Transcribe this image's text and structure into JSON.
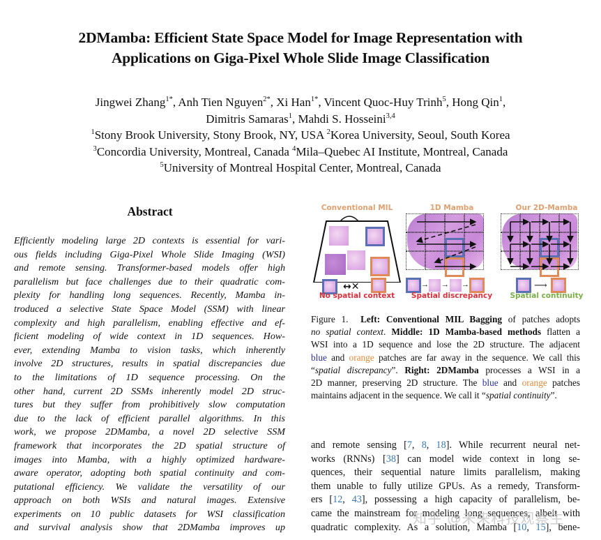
{
  "paper": {
    "title_lines": [
      "2DMamba: Efficient State Space Model for Image Representation with",
      "Applications on Giga-Pixel Whole Slide Image Classification"
    ],
    "authors": [
      {
        "name": "Jingwei Zhang",
        "sup": "1",
        "mark": "*"
      },
      {
        "name": "Anh Tien Nguyen",
        "sup": "2",
        "mark": "*"
      },
      {
        "name": "Xi Han",
        "sup": "1",
        "mark": "*"
      },
      {
        "name": "Vincent Quoc-Huy Trinh",
        "sup": "5"
      },
      {
        "name": "Hong Qin",
        "sup": "1"
      },
      {
        "name": "Dimitris Samaras",
        "sup": "1"
      },
      {
        "name": "Mahdi S. Hosseini",
        "sup": "3,4"
      }
    ],
    "affiliations": [
      {
        "sup": "1",
        "text": "Stony Brook University, Stony Brook, NY, USA"
      },
      {
        "sup": "2",
        "text": "Korea University, Seoul, South Korea"
      },
      {
        "sup": "3",
        "text": "Concordia University, Montreal, Canada"
      },
      {
        "sup": "4",
        "text": "Mila–Quebec AI Institute, Montreal, Canada"
      },
      {
        "sup": "5",
        "text": "University of Montreal Hospital Center, Montreal, Canada"
      }
    ]
  },
  "abstract": {
    "heading": "Abstract",
    "lines": [
      "Efficiently modeling large 2D contexts is essential for vari-",
      "ous fields including Giga-Pixel Whole Slide Imaging (WSI)",
      "and remote sensing.  Transformer-based models offer high",
      "parallelism but face challenges due to their quadratic com-",
      "plexity for handling long sequences.  Recently, Mamba in-",
      "troduced a selective State Space Model (SSM) with linear",
      "complexity and high parallelism, enabling effective and ef-",
      "ficient modeling of wide context in 1D sequences.  How-",
      "ever, extending Mamba to vision tasks, which inherently",
      "involve 2D structures, results in spatial discrepancies due",
      "to the limitations of 1D sequence processing.  On the",
      "other hand, current 2D SSMs inherently model 2D struc-",
      "tures but they suffer from prohibitively slow computation",
      "due to the lack of efficient parallel algorithms.  In this",
      "work, we propose 2DMamba, a novel 2D selective SSM",
      "framework that incorporates the 2D spatial structure of",
      "images into Mamba, with a highly optimized hardware-",
      "aware operator, adopting both spatial continuity and com-",
      "putational efficiency.  We validate the versatility of our",
      "approach on both WSIs and natural images.  Extensive",
      "experiments on 10 public datasets for WSI classification",
      "and survival analysis show that 2DMamba improves up"
    ]
  },
  "figure": {
    "panels": [
      {
        "title": "Conventional MIL",
        "caption": "No spatial context",
        "caption_color": "#d9303a"
      },
      {
        "title": "1D Mamba",
        "caption": "Spatial discrepancy",
        "caption_color": "#d9303a"
      },
      {
        "title": "Our 2D-Mamba",
        "caption": "Spatial continuity",
        "caption_color": "#7aae48"
      }
    ],
    "colors": {
      "blue_box": "#5a6fb4",
      "orange_box": "#e08a5a",
      "panel_title": "#e0a070"
    },
    "caption": {
      "label": "Figure 1.",
      "left_bold": "Left: Conventional MIL Bagging",
      "t1": " of patches adopts",
      "left_italic": "no spatial context",
      "middle_bold": "Middle: 1D Mamba-based methods",
      "t2": " flatten a",
      "t3": "WSI into a 1D sequence and lose the 2D structure. The adjacent",
      "blue": "blue",
      "and": " and ",
      "orange": "orange",
      "t4": " patches are far away in the sequence. We call this",
      "q_open": "“",
      "discrepancy_italic": "spatial discrepancy",
      "q_close": "”. ",
      "right_bold": "Right: 2DMamba",
      "t5": " processes a WSI in a",
      "t6": "2D manner, preserving 2D structure. The ",
      "t7": " patches",
      "t8": "maintains adjacent in the sequence. We call it “",
      "continuity_italic": "spatial continuity",
      "t9": "”."
    }
  },
  "intro": {
    "lines": [
      [
        "and remote sensing [",
        {
          "c": "7"
        },
        ", ",
        {
          "c": "8"
        },
        ", ",
        {
          "c": "18"
        },
        "].  While recurrent neural net-"
      ],
      [
        "works (RNNs) [",
        {
          "c": "38"
        },
        "] can model wide context in long se-"
      ],
      [
        "quences, their sequential nature limits parallelism, making"
      ],
      [
        "them unable to fully utilize GPUs.  As a remedy, Transform-"
      ],
      [
        "ers [",
        {
          "c": "12"
        },
        ", ",
        {
          "c": "43"
        },
        "], possessing a high capacity of parallelism, be-"
      ],
      [
        "came the mainstream for modeling long sequences, albeit with"
      ],
      [
        "quadratic complexity.  As a solution, Mamba [",
        {
          "c": "10"
        },
        ", ",
        {
          "c": "15"
        },
        "], bene-"
      ]
    ]
  },
  "watermark": "知乎 @未来科技观察生"
}
